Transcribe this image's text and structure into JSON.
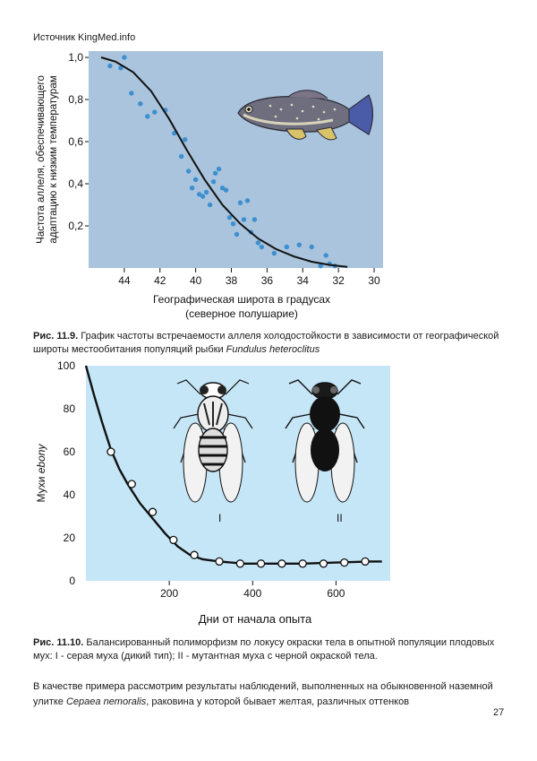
{
  "header": {
    "source": "Источник KingMed.info"
  },
  "figure1": {
    "caption_label": "Рис. 11.9.",
    "caption_text": "График частоты встречаемости аллеля холодостойкости в зависимости от географической широты местообитания популяций рыбки",
    "caption_species": "Fundulus heteroclitus"
  },
  "figure2": {
    "caption_label": "Рис. 11.10.",
    "caption_text": "Балансированный полиморфизм по локусу окраски тела в опытной популяции плодовых мух: I - серая муха (дикий тип); II - мутантная муха с черной окраской тела.",
    "fly_labels": [
      "I",
      "II"
    ]
  },
  "body": {
    "text_start": "В качестве примера рассмотрим результаты наблюдений, выполненных на обыкновенной наземной улитке",
    "species": "Cepaea nemoralis",
    "text_end": ", раковина у которой бывает желтая, различных оттенков"
  },
  "page_number": "27",
  "colors": {
    "plot1_bg": "#a9c4dc",
    "plot2_bg": "#c5e6f7",
    "dots": "#3d8fd0"
  },
  "chart_data": [
    {
      "type": "scatter",
      "title": "",
      "xlabel": "Географическая широта в градусах",
      "xlabel_line2": "(северное полушарие)",
      "ylabel": "Частота аллеля, обеспечивающего",
      "ylabel_line2": "адаптацию к низким температурам",
      "xlim": [
        46,
        29.5
      ],
      "ylim": [
        0,
        1.03
      ],
      "x_ticks": [
        44,
        42,
        40,
        38,
        36,
        34,
        32,
        30
      ],
      "x_tick_labels": [
        "44",
        "42",
        "40",
        "38",
        "36",
        "34",
        "32",
        "30"
      ],
      "y_ticks": [
        0.2,
        0.4,
        0.6,
        0.8,
        1.0
      ],
      "y_tick_labels": [
        "0,2",
        "0,4",
        "0,6",
        "0,8",
        "1,0"
      ],
      "points": [
        [
          44.8,
          0.96
        ],
        [
          44.2,
          0.95
        ],
        [
          44.0,
          1.0
        ],
        [
          43.6,
          0.83
        ],
        [
          43.1,
          0.78
        ],
        [
          42.7,
          0.72
        ],
        [
          42.3,
          0.74
        ],
        [
          41.7,
          0.75
        ],
        [
          41.2,
          0.64
        ],
        [
          40.8,
          0.53
        ],
        [
          40.6,
          0.61
        ],
        [
          40.4,
          0.46
        ],
        [
          40.2,
          0.38
        ],
        [
          40.0,
          0.42
        ],
        [
          39.8,
          0.35
        ],
        [
          39.6,
          0.34
        ],
        [
          39.4,
          0.36
        ],
        [
          39.2,
          0.3
        ],
        [
          39.0,
          0.41
        ],
        [
          38.9,
          0.45
        ],
        [
          38.7,
          0.47
        ],
        [
          38.5,
          0.38
        ],
        [
          38.3,
          0.37
        ],
        [
          38.1,
          0.24
        ],
        [
          37.9,
          0.21
        ],
        [
          37.7,
          0.16
        ],
        [
          37.5,
          0.31
        ],
        [
          37.3,
          0.23
        ],
        [
          37.1,
          0.32
        ],
        [
          36.9,
          0.17
        ],
        [
          36.7,
          0.23
        ],
        [
          36.5,
          0.12
        ],
        [
          36.3,
          0.1
        ],
        [
          35.6,
          0.07
        ],
        [
          34.9,
          0.1
        ],
        [
          34.2,
          0.11
        ],
        [
          33.5,
          0.1
        ],
        [
          33.0,
          0.01
        ],
        [
          32.7,
          0.06
        ],
        [
          32.5,
          0.02
        ],
        [
          32.2,
          0.01
        ]
      ],
      "fit_curve": [
        [
          45.3,
          1.0
        ],
        [
          44.5,
          0.98
        ],
        [
          43.5,
          0.93
        ],
        [
          42.5,
          0.84
        ],
        [
          41.5,
          0.71
        ],
        [
          40.5,
          0.56
        ],
        [
          39.5,
          0.42
        ],
        [
          38.5,
          0.3
        ],
        [
          37.5,
          0.21
        ],
        [
          36.5,
          0.14
        ],
        [
          35.5,
          0.09
        ],
        [
          34.5,
          0.055
        ],
        [
          33.5,
          0.03
        ],
        [
          32.5,
          0.015
        ],
        [
          31.5,
          0.005
        ]
      ]
    },
    {
      "type": "line",
      "title": "",
      "xlabel": "Дни от начала опыта",
      "ylabel": "Мухи ebony",
      "xlim": [
        0,
        730
      ],
      "ylim": [
        0,
        100
      ],
      "x_ticks": [
        200,
        400,
        600
      ],
      "x_tick_labels": [
        "200",
        "400",
        "600"
      ],
      "y_ticks": [
        0,
        20,
        40,
        60,
        80,
        100
      ],
      "y_tick_labels": [
        "0",
        "20",
        "40",
        "60",
        "80",
        "100"
      ],
      "x": [
        60,
        110,
        160,
        210,
        260,
        320,
        370,
        420,
        470,
        520,
        570,
        620,
        670
      ],
      "values": [
        60,
        45,
        32,
        19,
        12,
        9,
        8,
        8,
        8,
        8,
        8,
        8.5,
        9
      ],
      "curve": [
        [
          0,
          100
        ],
        [
          20,
          86
        ],
        [
          40,
          73
        ],
        [
          60,
          61
        ],
        [
          80,
          52
        ],
        [
          100,
          45
        ],
        [
          130,
          36
        ],
        [
          160,
          29
        ],
        [
          190,
          22
        ],
        [
          220,
          16
        ],
        [
          250,
          12
        ],
        [
          280,
          10
        ],
        [
          320,
          9
        ],
        [
          380,
          8
        ],
        [
          450,
          8
        ],
        [
          520,
          8
        ],
        [
          600,
          8.5
        ],
        [
          680,
          9
        ],
        [
          710,
          9
        ]
      ]
    }
  ]
}
